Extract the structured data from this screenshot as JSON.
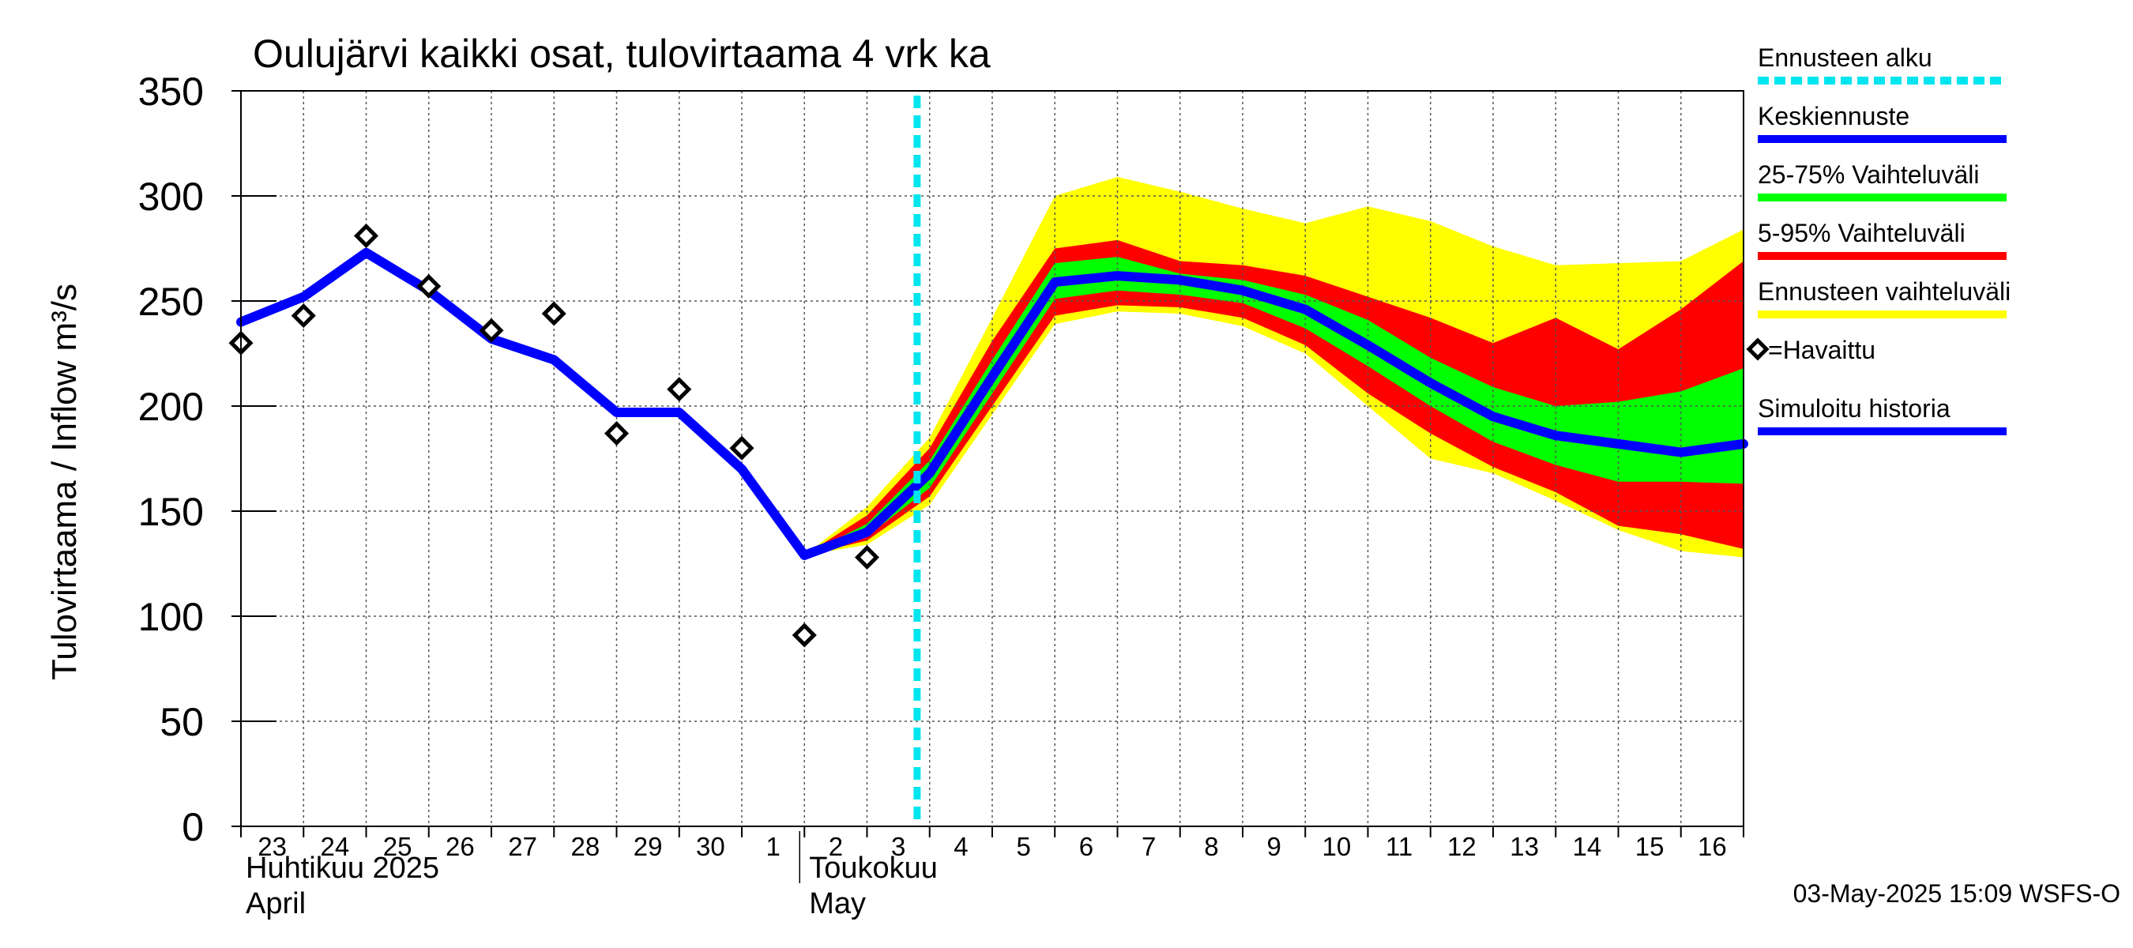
{
  "chart_data": {
    "type": "line",
    "title": "Oulujärvi kaikki osat, tulovirtaama  4 vrk ka",
    "ylabel": "Tulovirtaama / Inflow    m³/s",
    "xlabel": "",
    "ylim": [
      0,
      350
    ],
    "yticks": [
      0,
      50,
      100,
      150,
      200,
      250,
      300,
      350
    ],
    "x_days": [
      "23",
      "24",
      "25",
      "26",
      "27",
      "28",
      "29",
      "30",
      "1",
      "2",
      "3",
      "4",
      "5",
      "6",
      "7",
      "8",
      "9",
      "10",
      "11",
      "12",
      "13",
      "14",
      "15",
      "16"
    ],
    "months": [
      {
        "line1": "Huhtikuu  2025",
        "line2": "April",
        "start": "23"
      },
      {
        "line1": "Toukokuu",
        "line2": "May",
        "start": "2"
      }
    ],
    "grid": true,
    "forecast_start": 10.8,
    "series": [
      {
        "name": "Simuloitu historia",
        "color": "#0000ff",
        "x": [
          0,
          1,
          2,
          3,
          4,
          5,
          6,
          7,
          8,
          9
        ],
        "y": [
          240,
          252,
          273,
          255,
          232,
          222,
          197,
          197,
          170,
          129
        ]
      },
      {
        "name": "Keskiennuste",
        "color": "#0000ff",
        "x": [
          9,
          10,
          11,
          12,
          13,
          14,
          15,
          16,
          17,
          18,
          19,
          20,
          21,
          22,
          23,
          24
        ],
        "y": [
          129,
          140,
          168,
          214,
          259,
          262,
          260,
          255,
          246,
          229,
          211,
          195,
          186,
          182,
          178,
          182
        ]
      },
      {
        "name": "Havaittu",
        "marker": "diamond",
        "x": [
          0,
          1,
          2,
          3,
          4,
          5,
          6,
          7,
          8,
          9,
          10
        ],
        "y": [
          230,
          243,
          281,
          257,
          236,
          244,
          187,
          208,
          180,
          91,
          128
        ]
      }
    ],
    "bands": [
      {
        "name": "Ennusteen vaihteluväli",
        "color": "#ffff00",
        "x": [
          9,
          10,
          11,
          12,
          13,
          14,
          15,
          16,
          17,
          18,
          19,
          20,
          21,
          22,
          23,
          24
        ],
        "upper": [
          129,
          152,
          185,
          242,
          300,
          309,
          302,
          294,
          287,
          295,
          288,
          276,
          267,
          268,
          269,
          284
        ],
        "lower": [
          129,
          134,
          153,
          196,
          239,
          245,
          244,
          238,
          225,
          200,
          175,
          168,
          155,
          141,
          131,
          128
        ]
      },
      {
        "name": "5-95% Vaihteluväli",
        "color": "#ff0000",
        "x": [
          9,
          10,
          11,
          12,
          13,
          14,
          15,
          16,
          17,
          18,
          19,
          20,
          21,
          22,
          23,
          24
        ],
        "upper": [
          129,
          148,
          180,
          231,
          275,
          279,
          269,
          267,
          262,
          252,
          242,
          230,
          242,
          227,
          246,
          269
        ],
        "lower": [
          129,
          136,
          157,
          200,
          243,
          248,
          247,
          242,
          229,
          206,
          187,
          171,
          159,
          143,
          139,
          132
        ]
      },
      {
        "name": "25-75% Vaihteluväli",
        "color": "#00ff00",
        "x": [
          9,
          10,
          11,
          12,
          13,
          14,
          15,
          16,
          17,
          18,
          19,
          20,
          21,
          22,
          23,
          24
        ],
        "upper": [
          129,
          144,
          174,
          222,
          268,
          271,
          263,
          260,
          253,
          241,
          223,
          209,
          200,
          202,
          207,
          218
        ],
        "lower": [
          129,
          138,
          161,
          206,
          251,
          255,
          253,
          249,
          237,
          219,
          200,
          183,
          172,
          164,
          164,
          163
        ]
      }
    ],
    "legend": {
      "placement": "right",
      "items": [
        {
          "label": "Ennusteen alku",
          "color": "#00e5ee",
          "style": "dashed"
        },
        {
          "label": "Keskiennuste",
          "color": "#0000ff",
          "style": "line"
        },
        {
          "label": "25-75% Vaihteluväli",
          "color": "#00ff00",
          "style": "line"
        },
        {
          "label": "5-95% Vaihteluväli",
          "color": "#ff0000",
          "style": "line"
        },
        {
          "label": "Ennusteen vaihteluväli",
          "color": "#ffff00",
          "style": "line"
        },
        {
          "label": "=Havaittu",
          "color": "#000000",
          "style": "diamond"
        },
        {
          "label": "Simuloitu historia",
          "color": "#0000ff",
          "style": "line"
        }
      ]
    },
    "timestamp": "03-May-2025 15:09 WSFS-O"
  }
}
